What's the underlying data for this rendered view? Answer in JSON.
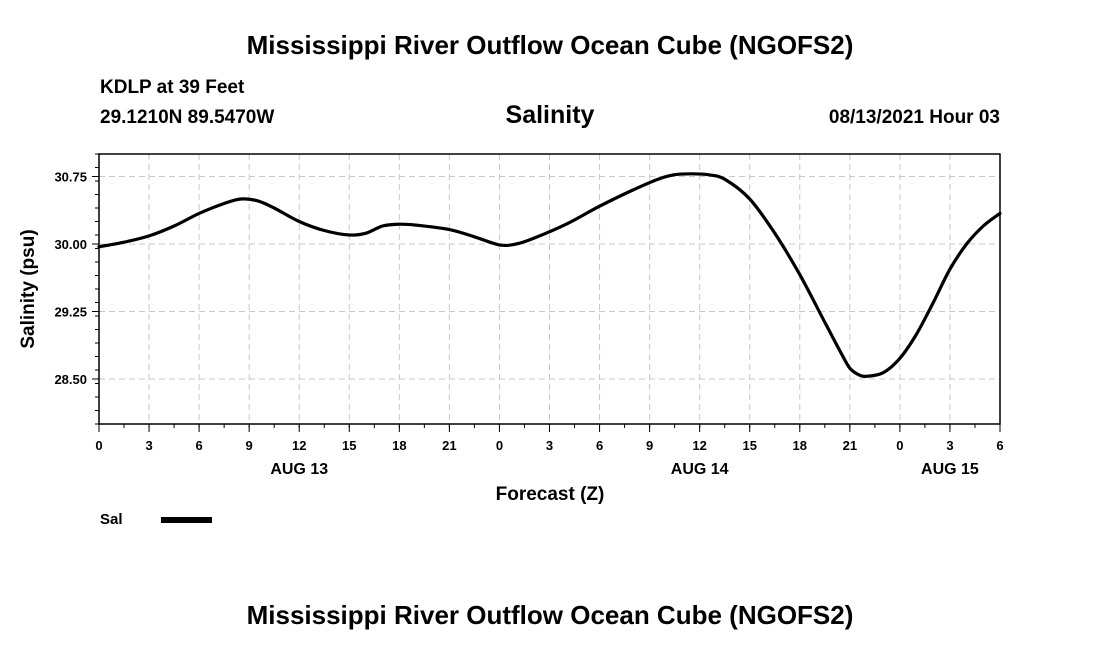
{
  "header": {
    "title": "Mississippi River Outflow Ocean Cube (NGOFS2)",
    "station": "KDLP at 39 Feet",
    "coords": "29.1210N  89.5470W",
    "parameter": "Salinity",
    "datetime": "08/13/2021 Hour 03"
  },
  "footer": {
    "title": "Mississippi River Outflow Ocean Cube (NGOFS2)"
  },
  "chart_data": {
    "type": "line",
    "title": "Salinity",
    "xlabel": "Forecast (Z)",
    "ylabel": "Salinity (psu)",
    "xlim": [
      0,
      54
    ],
    "ylim": [
      28.0,
      31.0
    ],
    "grid": true,
    "x_tick_values": [
      0,
      3,
      6,
      9,
      12,
      15,
      18,
      21,
      24,
      27,
      30,
      33,
      36,
      39,
      42,
      45,
      48,
      51,
      54
    ],
    "x_tick_labels": [
      "0",
      "3",
      "6",
      "9",
      "12",
      "15",
      "18",
      "21",
      "0",
      "3",
      "6",
      "9",
      "12",
      "15",
      "18",
      "21",
      "0",
      "3",
      "6"
    ],
    "date_labels": [
      {
        "label": "AUG 13",
        "at_hour": 12
      },
      {
        "label": "AUG 14",
        "at_hour": 36
      },
      {
        "label": "AUG 15",
        "at_hour": 51
      }
    ],
    "y_tick_values": [
      28.5,
      29.25,
      30.0,
      30.75
    ],
    "y_tick_labels": [
      "28.50",
      "29.25",
      "30.00",
      "30.75"
    ],
    "y_minor_step": 0.15,
    "x_minor_step": 1.5,
    "series": [
      {
        "name": "Sal",
        "color": "#000000",
        "x": [
          0,
          1.5,
          3,
          4.5,
          6,
          7.5,
          8.5,
          9.5,
          10.5,
          12,
          13.5,
          15,
          16,
          17,
          18,
          19,
          21,
          22.5,
          24,
          25,
          26,
          28,
          30,
          32,
          33.5,
          34.5,
          35.5,
          36.5,
          37.5,
          39,
          40.5,
          42,
          43.5,
          44.5,
          45,
          45.5,
          46,
          47,
          48,
          49,
          50,
          51,
          52,
          53,
          54
        ],
        "values": [
          29.97,
          30.02,
          30.09,
          30.2,
          30.34,
          30.45,
          30.5,
          30.48,
          30.4,
          30.25,
          30.15,
          30.1,
          30.12,
          30.2,
          30.22,
          30.21,
          30.16,
          30.08,
          29.99,
          30.0,
          30.06,
          30.22,
          30.42,
          30.6,
          30.72,
          30.77,
          30.78,
          30.77,
          30.72,
          30.5,
          30.12,
          29.66,
          29.13,
          28.78,
          28.62,
          28.55,
          28.53,
          28.57,
          28.73,
          29.0,
          29.35,
          29.72,
          30.0,
          30.2,
          30.34
        ]
      }
    ]
  }
}
